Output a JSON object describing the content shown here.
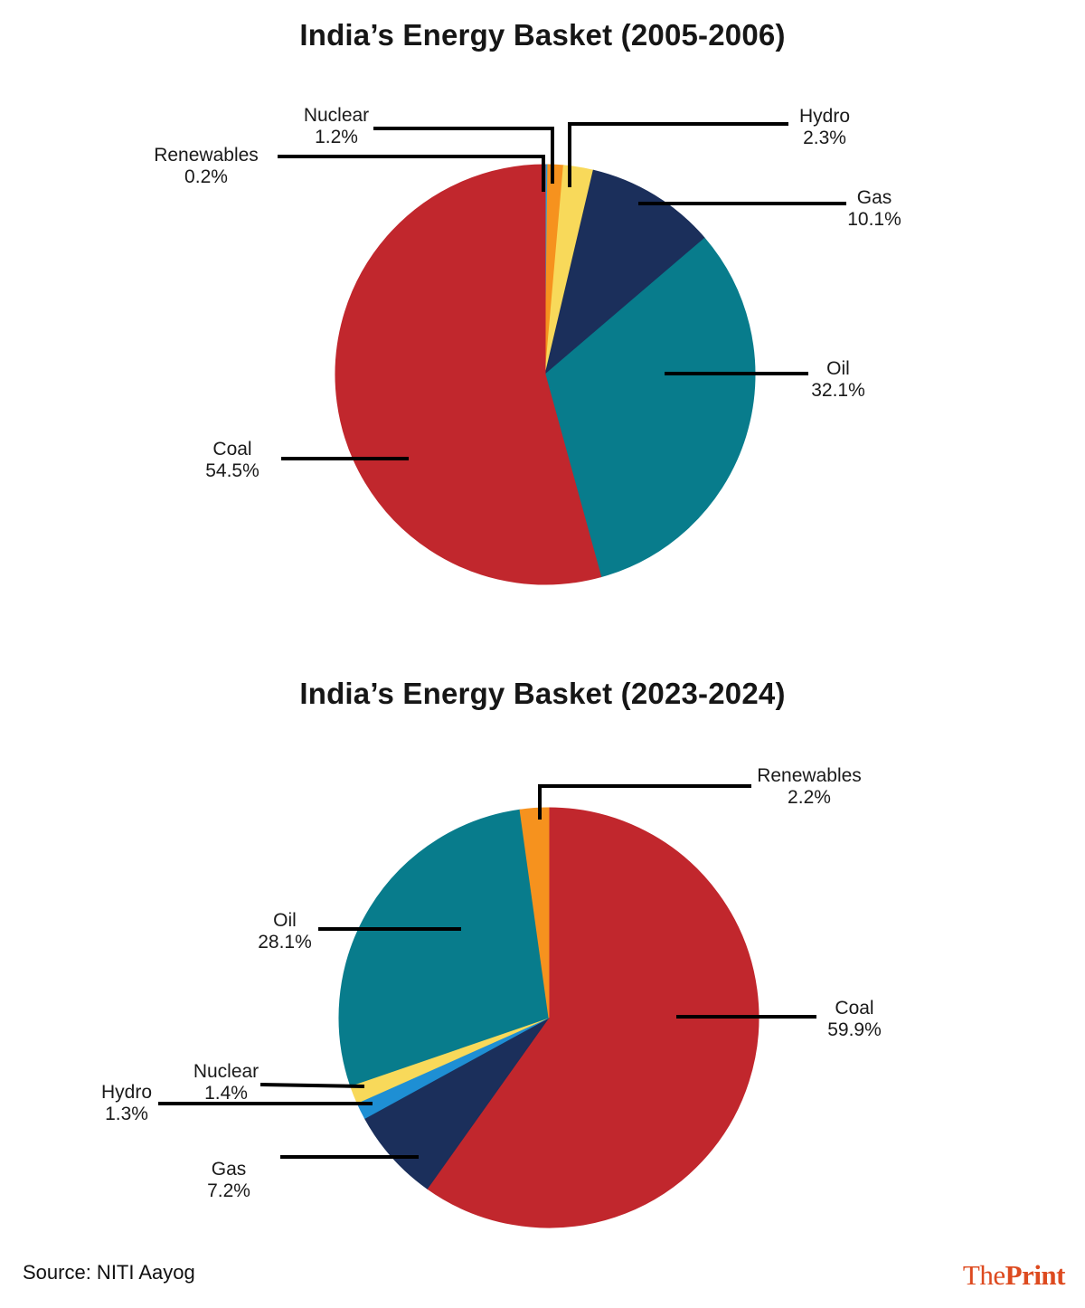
{
  "chart_data": [
    {
      "type": "pie",
      "title": "India’s Energy Basket (2005-2006)",
      "order": "clockwise from 12 o'clock",
      "labels": [
        "Renewables",
        "Nuclear",
        "Hydro",
        "Gas",
        "Oil",
        "Coal"
      ],
      "values": [
        0.2,
        1.2,
        2.3,
        10.1,
        32.1,
        54.5
      ],
      "value_labels": [
        "0.2%",
        "1.2%",
        "2.3%",
        "10.1%",
        "32.1%",
        "54.5%"
      ],
      "colors": [
        "#2D9FD8",
        "#F6921E",
        "#F8D95A",
        "#1B2F5B",
        "#087C8C",
        "#C1272D"
      ]
    },
    {
      "type": "pie",
      "title": "India’s Energy Basket (2023-2024)",
      "order": "clockwise from 12 o'clock",
      "labels": [
        "Coal",
        "Gas",
        "Hydro",
        "Nuclear",
        "Oil",
        "Renewables"
      ],
      "values": [
        59.9,
        7.2,
        1.3,
        1.4,
        28.1,
        2.2
      ],
      "value_labels": [
        "59.9%",
        "7.2%",
        "1.3%",
        "1.4%",
        "28.1%",
        "2.2%"
      ],
      "colors": [
        "#C1272D",
        "#1B2F5B",
        "#1E8FD4",
        "#F8D95A",
        "#087C8C",
        "#F6921E"
      ]
    }
  ],
  "footer": {
    "source": "Source: NITI Aayog",
    "brand": {
      "the": "The",
      "print": "Print",
      "color": "#DD4A1F"
    }
  },
  "leader_line_color": "#000000"
}
